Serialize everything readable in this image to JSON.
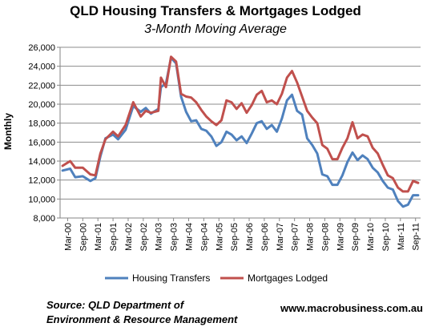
{
  "chart_data": {
    "type": "line",
    "title": "QLD Housing Transfers & Mortgages Lodged",
    "subtitle": "3-Month Moving Average",
    "ylabel": "Monthly",
    "xlabel": "",
    "ylim": [
      8000,
      26000
    ],
    "yticks": [
      "8,000",
      "10,000",
      "12,000",
      "14,000",
      "16,000",
      "18,000",
      "20,000",
      "22,000",
      "24,000",
      "26,000"
    ],
    "ytick_values": [
      8000,
      10000,
      12000,
      14000,
      16000,
      18000,
      20000,
      22000,
      24000,
      26000
    ],
    "xticks": [
      "Mar-00",
      "Sep-00",
      "Mar-01",
      "Sep-01",
      "Mar-02",
      "Sep-02",
      "Mar-03",
      "Sep-03",
      "Mar-04",
      "Sep-04",
      "Mar-05",
      "Sep-05",
      "Mar-06",
      "Sep-06",
      "Mar-07",
      "Sep-07",
      "Mar-08",
      "Sep-08",
      "Mar-09",
      "Sep-09",
      "Mar-10",
      "Sep-10",
      "Mar-11",
      "Sep-11"
    ],
    "grid": "horizontal",
    "legend": "bottom",
    "series": [
      {
        "name": "Housing Transfers",
        "color": "#4f81bd",
        "points": [
          [
            "Jan-00",
            13000
          ],
          [
            "Apr-00",
            13200
          ],
          [
            "Jun-00",
            12300
          ],
          [
            "Sep-00",
            12400
          ],
          [
            "Dec-00",
            11900
          ],
          [
            "Feb-01",
            12200
          ],
          [
            "Apr-01",
            14500
          ],
          [
            "Jun-01",
            16400
          ],
          [
            "Sep-01",
            16800
          ],
          [
            "Nov-01",
            16300
          ],
          [
            "Feb-02",
            17300
          ],
          [
            "May-02",
            19800
          ],
          [
            "Aug-02",
            19200
          ],
          [
            "Oct-02",
            19600
          ],
          [
            "Dec-02",
            19000
          ],
          [
            "Mar-03",
            19500
          ],
          [
            "Apr-03",
            21800
          ],
          [
            "Jun-03",
            22200
          ],
          [
            "Aug-03",
            24900
          ],
          [
            "Oct-03",
            24300
          ],
          [
            "Dec-03",
            20800
          ],
          [
            "Feb-04",
            19200
          ],
          [
            "Apr-04",
            18200
          ],
          [
            "Jun-04",
            18300
          ],
          [
            "Aug-04",
            17400
          ],
          [
            "Oct-04",
            17200
          ],
          [
            "Dec-04",
            16600
          ],
          [
            "Feb-05",
            15600
          ],
          [
            "Apr-05",
            16000
          ],
          [
            "Jun-05",
            17100
          ],
          [
            "Aug-05",
            16800
          ],
          [
            "Oct-05",
            16200
          ],
          [
            "Dec-05",
            16600
          ],
          [
            "Feb-06",
            15900
          ],
          [
            "Apr-06",
            16900
          ],
          [
            "Jun-06",
            18000
          ],
          [
            "Aug-06",
            18200
          ],
          [
            "Oct-06",
            17400
          ],
          [
            "Dec-06",
            17800
          ],
          [
            "Feb-07",
            17100
          ],
          [
            "Apr-07",
            18500
          ],
          [
            "Jun-07",
            20400
          ],
          [
            "Aug-07",
            21000
          ],
          [
            "Oct-07",
            19300
          ],
          [
            "Dec-07",
            18900
          ],
          [
            "Feb-08",
            16400
          ],
          [
            "Apr-08",
            15700
          ],
          [
            "Jun-08",
            14800
          ],
          [
            "Aug-08",
            12600
          ],
          [
            "Oct-08",
            12400
          ],
          [
            "Dec-08",
            11500
          ],
          [
            "Feb-09",
            11500
          ],
          [
            "Apr-09",
            12500
          ],
          [
            "Jun-09",
            13900
          ],
          [
            "Aug-09",
            14900
          ],
          [
            "Oct-09",
            14100
          ],
          [
            "Dec-09",
            14600
          ],
          [
            "Feb-10",
            14200
          ],
          [
            "Apr-10",
            13300
          ],
          [
            "Jun-10",
            12800
          ],
          [
            "Aug-10",
            11900
          ],
          [
            "Oct-10",
            11200
          ],
          [
            "Dec-10",
            11000
          ],
          [
            "Feb-11",
            9800
          ],
          [
            "Apr-11",
            9200
          ],
          [
            "Jun-11",
            9400
          ],
          [
            "Aug-11",
            10400
          ],
          [
            "Oct-11",
            10400
          ]
        ]
      },
      {
        "name": "Mortgages Lodged",
        "color": "#c0504d",
        "points": [
          [
            "Jan-00",
            13500
          ],
          [
            "Apr-00",
            14000
          ],
          [
            "Jun-00",
            13300
          ],
          [
            "Sep-00",
            13300
          ],
          [
            "Dec-00",
            12600
          ],
          [
            "Feb-01",
            12500
          ],
          [
            "Apr-01",
            14800
          ],
          [
            "Jun-01",
            16300
          ],
          [
            "Sep-01",
            17100
          ],
          [
            "Nov-01",
            16600
          ],
          [
            "Feb-02",
            17800
          ],
          [
            "May-02",
            20200
          ],
          [
            "Aug-02",
            18700
          ],
          [
            "Oct-02",
            19300
          ],
          [
            "Dec-02",
            19100
          ],
          [
            "Mar-03",
            19300
          ],
          [
            "Apr-03",
            22800
          ],
          [
            "Jun-03",
            21800
          ],
          [
            "Aug-03",
            25000
          ],
          [
            "Oct-03",
            24500
          ],
          [
            "Dec-03",
            21100
          ],
          [
            "Feb-04",
            20800
          ],
          [
            "Apr-04",
            20700
          ],
          [
            "Jun-04",
            20200
          ],
          [
            "Aug-04",
            19400
          ],
          [
            "Oct-04",
            18700
          ],
          [
            "Dec-04",
            18200
          ],
          [
            "Feb-05",
            17800
          ],
          [
            "Apr-05",
            18300
          ],
          [
            "Jun-05",
            20400
          ],
          [
            "Aug-05",
            20200
          ],
          [
            "Oct-05",
            19500
          ],
          [
            "Dec-05",
            20100
          ],
          [
            "Feb-06",
            19100
          ],
          [
            "Apr-06",
            19900
          ],
          [
            "Jun-06",
            21000
          ],
          [
            "Aug-06",
            21400
          ],
          [
            "Oct-06",
            20200
          ],
          [
            "Dec-06",
            20400
          ],
          [
            "Feb-07",
            20000
          ],
          [
            "Apr-07",
            21100
          ],
          [
            "Jun-07",
            22800
          ],
          [
            "Aug-07",
            23500
          ],
          [
            "Oct-07",
            22300
          ],
          [
            "Dec-07",
            20800
          ],
          [
            "Feb-08",
            19300
          ],
          [
            "Apr-08",
            18600
          ],
          [
            "Jun-08",
            18000
          ],
          [
            "Aug-08",
            15700
          ],
          [
            "Oct-08",
            15300
          ],
          [
            "Dec-08",
            14200
          ],
          [
            "Feb-09",
            14200
          ],
          [
            "Apr-09",
            15400
          ],
          [
            "Jun-09",
            16400
          ],
          [
            "Aug-09",
            18100
          ],
          [
            "Oct-09",
            16400
          ],
          [
            "Dec-09",
            16800
          ],
          [
            "Feb-10",
            16600
          ],
          [
            "Apr-10",
            15400
          ],
          [
            "Jun-10",
            14800
          ],
          [
            "Aug-10",
            13600
          ],
          [
            "Oct-10",
            12500
          ],
          [
            "Dec-10",
            12200
          ],
          [
            "Feb-11",
            11200
          ],
          [
            "Apr-11",
            10800
          ],
          [
            "Jun-11",
            10800
          ],
          [
            "Aug-11",
            11900
          ],
          [
            "Oct-11",
            11700
          ]
        ]
      }
    ]
  },
  "footer": {
    "source_line1": "Source: QLD Department of",
    "source_line2": "Environment & Resource Management",
    "website": "www.macrobusiness.com.au"
  }
}
